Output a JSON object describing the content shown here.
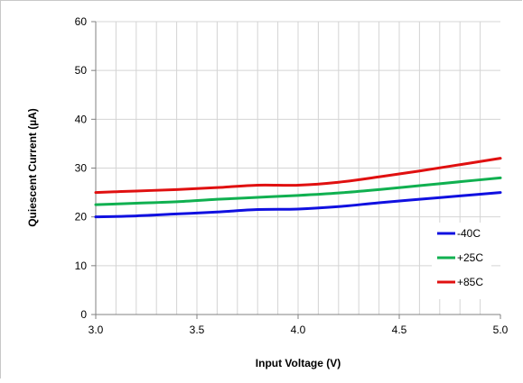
{
  "chart_data": {
    "type": "line",
    "title": "",
    "xlabel": "Input Voltage (V)",
    "ylabel": "Quiescent Current (µA)",
    "xlim": [
      3.0,
      5.0
    ],
    "ylim": [
      0,
      60
    ],
    "x_ticks": [
      3.0,
      3.5,
      4.0,
      4.5,
      5.0
    ],
    "x_tick_labels": [
      "3.0",
      "3.5",
      "4.0",
      "4.5",
      "5.0"
    ],
    "y_ticks": [
      0,
      10,
      20,
      30,
      40,
      50,
      60
    ],
    "y_tick_labels": [
      "0",
      "10",
      "20",
      "30",
      "40",
      "50",
      "60"
    ],
    "x_minor_step": 0.1,
    "grid": true,
    "legend_position": "bottom-right",
    "x": [
      3.0,
      3.2,
      3.4,
      3.6,
      3.8,
      4.0,
      4.2,
      4.4,
      4.6,
      4.8,
      5.0
    ],
    "series": [
      {
        "name": "-40C",
        "color": "#1010e0",
        "values": [
          20.0,
          20.2,
          20.6,
          21.0,
          21.5,
          21.6,
          22.1,
          22.9,
          23.6,
          24.3,
          25.0
        ]
      },
      {
        "name": "+25C",
        "color": "#10b050",
        "values": [
          22.5,
          22.8,
          23.1,
          23.6,
          24.0,
          24.4,
          24.9,
          25.6,
          26.4,
          27.2,
          28.0
        ]
      },
      {
        "name": "+85C",
        "color": "#e01010",
        "values": [
          25.0,
          25.3,
          25.6,
          26.0,
          26.5,
          26.5,
          27.1,
          28.2,
          29.4,
          30.7,
          32.0
        ]
      }
    ]
  }
}
